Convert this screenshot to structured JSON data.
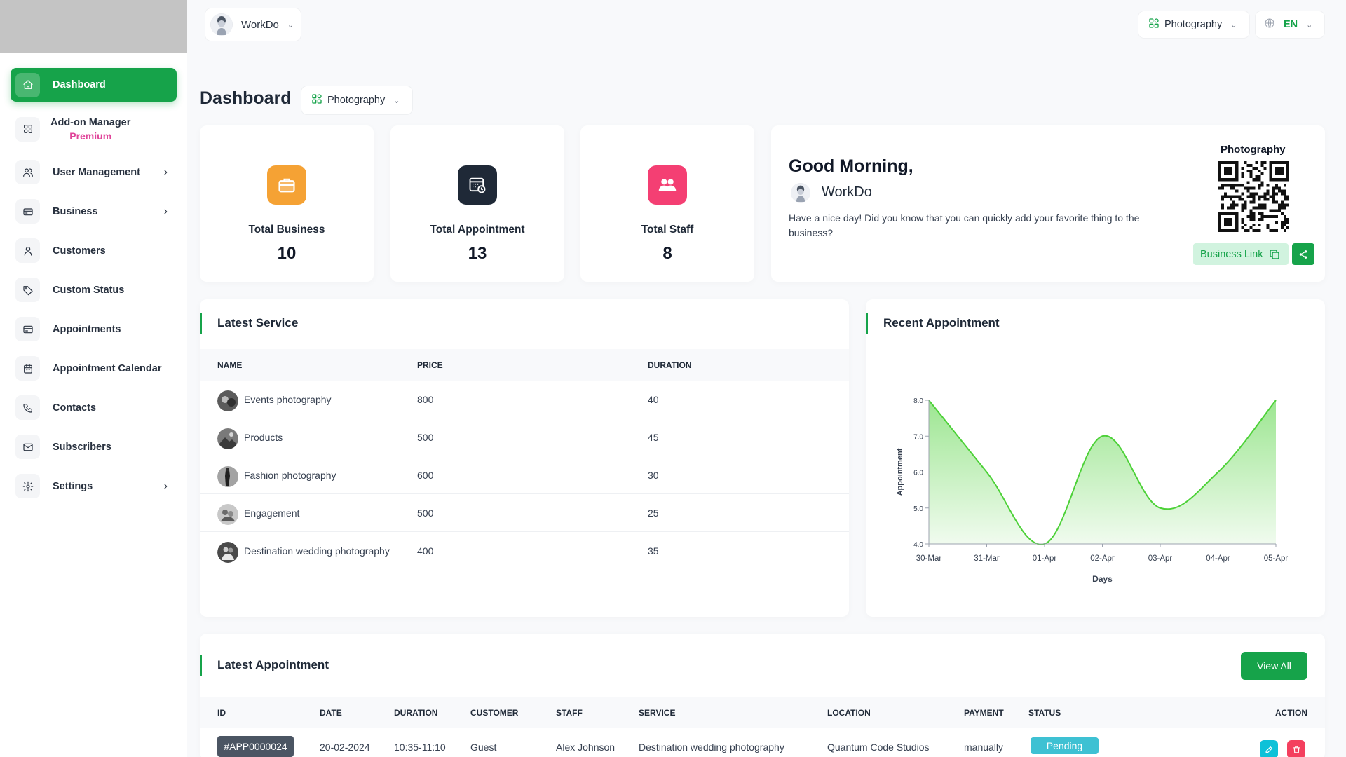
{
  "sidebar": {
    "items": [
      {
        "label": "Dashboard",
        "icon": "home-icon",
        "active": true,
        "chevron": false
      },
      {
        "label": "Add-on Manager",
        "sub": "Premium",
        "icon": "grid-icon",
        "active": false,
        "chevron": false
      },
      {
        "label": "User Management",
        "icon": "users-icon",
        "active": false,
        "chevron": true
      },
      {
        "label": "Business",
        "icon": "briefcase-icon",
        "active": false,
        "chevron": true
      },
      {
        "label": "Customers",
        "icon": "user-icon",
        "active": false,
        "chevron": false
      },
      {
        "label": "Custom Status",
        "icon": "tag-icon",
        "active": false,
        "chevron": false
      },
      {
        "label": "Appointments",
        "icon": "card-icon",
        "active": false,
        "chevron": false
      },
      {
        "label": "Appointment Calendar",
        "icon": "calendar-icon",
        "active": false,
        "chevron": false
      },
      {
        "label": "Contacts",
        "icon": "phone-icon",
        "active": false,
        "chevron": false
      },
      {
        "label": "Subscribers",
        "icon": "mail-icon",
        "active": false,
        "chevron": false
      },
      {
        "label": "Settings",
        "icon": "gear-icon",
        "active": false,
        "chevron": true
      }
    ]
  },
  "header": {
    "user_name": "WorkDo",
    "business_selector": "Photography",
    "language": "EN"
  },
  "page": {
    "title": "Dashboard",
    "business_selector": "Photography"
  },
  "stats": [
    {
      "label": "Total Business",
      "value": "10",
      "color": "#f5a234",
      "icon": "briefcase-icon"
    },
    {
      "label": "Total Appointment",
      "value": "13",
      "color": "#1f2937",
      "icon": "calendar-clock-icon"
    },
    {
      "label": "Total Staff",
      "value": "8",
      "color": "#f43f73",
      "icon": "users-icon"
    }
  ],
  "welcome": {
    "greeting": "Good Morning,",
    "name": "WorkDo",
    "message": "Have a nice day! Did you know that you can quickly add your favorite thing to the business?",
    "qr_title": "Photography",
    "business_link_label": "Business Link"
  },
  "latest_service": {
    "title": "Latest Service",
    "columns": [
      "NAME",
      "PRICE",
      "DURATION"
    ],
    "rows": [
      {
        "name": "Events photography",
        "price": "800",
        "duration": "40"
      },
      {
        "name": "Products",
        "price": "500",
        "duration": "45"
      },
      {
        "name": "Fashion photography",
        "price": "600",
        "duration": "30"
      },
      {
        "name": "Engagement",
        "price": "500",
        "duration": "25"
      },
      {
        "name": "Destination wedding photography",
        "price": "400",
        "duration": "35"
      }
    ]
  },
  "recent_appointment": {
    "title": "Recent Appointment"
  },
  "chart_data": {
    "type": "area",
    "categories": [
      "30-Mar",
      "31-Mar",
      "01-Apr",
      "02-Apr",
      "03-Apr",
      "04-Apr",
      "05-Apr"
    ],
    "values": [
      8,
      6,
      4,
      7,
      5,
      6,
      8
    ],
    "ylabel": "Appointment",
    "xlabel": "Days",
    "ylim": [
      4,
      8
    ],
    "yticks": [
      "4.0",
      "5.0",
      "6.0",
      "7.0",
      "8.0"
    ],
    "color": "#4cd137",
    "grid": false
  },
  "latest_appointment": {
    "title": "Latest Appointment",
    "view_all_label": "View All",
    "columns": [
      "ID",
      "DATE",
      "DURATION",
      "CUSTOMER",
      "STAFF",
      "SERVICE",
      "LOCATION",
      "PAYMENT",
      "STATUS",
      "ACTION"
    ],
    "rows": [
      {
        "id": "#APP0000024",
        "date": "20-02-2024",
        "duration": "10:35-11:10",
        "customer": "Guest",
        "staff": "Alex Johnson",
        "service": "Destination wedding photography",
        "location": "Quantum Code Studios",
        "payment": "manually",
        "status": "Pending"
      }
    ]
  },
  "colors": {
    "primary": "#16a34a",
    "premium": "#e0459a",
    "pending": "#3ec1d3",
    "danger": "#f43f5e",
    "edit": "#0ec1d8"
  }
}
